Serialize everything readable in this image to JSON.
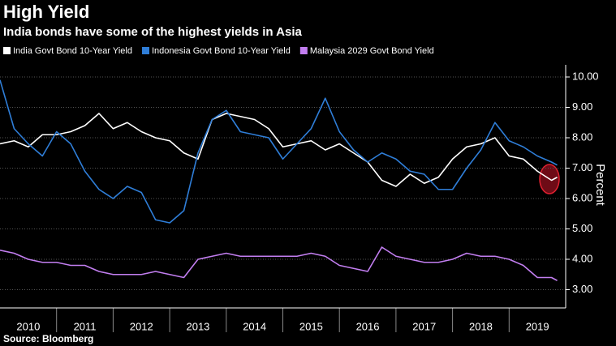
{
  "chart_data": {
    "type": "line",
    "title": "High Yield",
    "subtitle": "India bonds have some of the highest yields in Asia",
    "y_axis_label": "Percent",
    "source": "Source: Bloomberg",
    "x": [
      2010,
      2010.25,
      2010.5,
      2010.75,
      2011,
      2011.25,
      2011.5,
      2011.75,
      2012,
      2012.25,
      2012.5,
      2012.75,
      2013,
      2013.25,
      2013.5,
      2013.75,
      2014,
      2014.25,
      2014.5,
      2014.75,
      2015,
      2015.25,
      2015.5,
      2015.75,
      2016,
      2016.25,
      2016.5,
      2016.75,
      2017,
      2017.25,
      2017.5,
      2017.75,
      2018,
      2018.25,
      2018.5,
      2018.75,
      2019,
      2019.25,
      2019.5,
      2019.75,
      2019.85
    ],
    "series": [
      {
        "name": "India Govt Bond 10-Year Yield",
        "color": "#ffffff",
        "values": [
          7.8,
          7.9,
          7.7,
          8.1,
          8.1,
          8.2,
          8.4,
          8.8,
          8.3,
          8.5,
          8.2,
          8.0,
          7.9,
          7.5,
          7.3,
          8.6,
          8.8,
          8.7,
          8.6,
          8.3,
          7.7,
          7.8,
          7.9,
          7.6,
          7.8,
          7.5,
          7.2,
          6.6,
          6.4,
          6.8,
          6.5,
          6.7,
          7.3,
          7.7,
          7.8,
          8.0,
          7.4,
          7.3,
          6.9,
          6.6,
          6.7
        ]
      },
      {
        "name": "Indonesia Govt Bond 10-Year Yield",
        "color": "#2f7ed8",
        "values": [
          9.9,
          8.3,
          7.8,
          7.4,
          8.2,
          7.8,
          6.9,
          6.3,
          6.0,
          6.4,
          6.2,
          5.3,
          5.2,
          5.6,
          7.5,
          8.6,
          8.9,
          8.2,
          8.1,
          8.0,
          7.3,
          7.8,
          8.3,
          9.3,
          8.2,
          7.6,
          7.2,
          7.5,
          7.3,
          6.9,
          6.8,
          6.3,
          6.3,
          7.0,
          7.6,
          8.5,
          7.9,
          7.7,
          7.4,
          7.2,
          7.1
        ]
      },
      {
        "name": "Malaysia 2029 Govt Bond Yield",
        "color": "#c27ef0",
        "values": [
          4.3,
          4.2,
          4.0,
          3.9,
          3.9,
          3.8,
          3.8,
          3.6,
          3.5,
          3.5,
          3.5,
          3.6,
          3.5,
          3.4,
          4.0,
          4.1,
          4.2,
          4.1,
          4.1,
          4.1,
          4.1,
          4.1,
          4.2,
          4.1,
          3.8,
          3.7,
          3.6,
          4.4,
          4.1,
          4.0,
          3.9,
          3.9,
          4.0,
          4.2,
          4.1,
          4.1,
          4.0,
          3.8,
          3.4,
          3.4,
          3.3
        ]
      }
    ],
    "xlim": [
      2010,
      2020
    ],
    "xticks": [
      {
        "value": 2010,
        "label": "2010"
      },
      {
        "value": 2011,
        "label": "2011"
      },
      {
        "value": 2012,
        "label": "2012"
      },
      {
        "value": 2013,
        "label": "2013"
      },
      {
        "value": 2014,
        "label": "2014"
      },
      {
        "value": 2015,
        "label": "2015"
      },
      {
        "value": 2016,
        "label": "2016"
      },
      {
        "value": 2017,
        "label": "2017"
      },
      {
        "value": 2018,
        "label": "2018"
      },
      {
        "value": 2019,
        "label": "2019"
      }
    ],
    "ylim": [
      2.4,
      10.4
    ],
    "yticks": [
      {
        "value": 3,
        "label": "3.00"
      },
      {
        "value": 4,
        "label": "4.00"
      },
      {
        "value": 5,
        "label": "5.00"
      },
      {
        "value": 6,
        "label": "6.00"
      },
      {
        "value": 7,
        "label": "7.00"
      },
      {
        "value": 8,
        "label": "8.00"
      },
      {
        "value": 9,
        "label": "9.00"
      },
      {
        "value": 10,
        "label": "10.00"
      }
    ],
    "grid": true
  }
}
